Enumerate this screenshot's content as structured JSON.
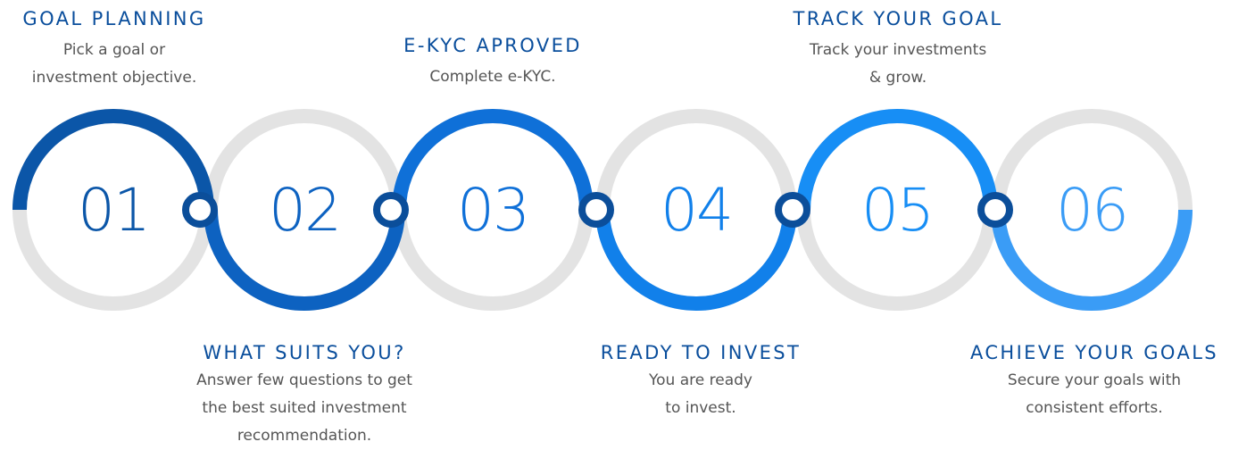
{
  "steps": [
    {
      "number": "01",
      "title": "GOAL PLANNING",
      "desc_line1": "Pick a goal or",
      "desc_line2": "investment objective.",
      "desc_line3": "",
      "color": "#0b56a8"
    },
    {
      "number": "02",
      "title": "WHAT SUITS YOU?",
      "desc_line1": "Answer few questions to get",
      "desc_line2": "the best suited investment",
      "desc_line3": "recommendation.",
      "color": "#0d62c1"
    },
    {
      "number": "03",
      "title": "E-KYC APROVED",
      "desc_line1": "Complete e-KYC.",
      "desc_line2": "",
      "desc_line3": "",
      "color": "#0f70d8"
    },
    {
      "number": "04",
      "title": "READY TO INVEST",
      "desc_line1": "You are ready",
      "desc_line2": "to invest.",
      "desc_line3": "",
      "color": "#1180ea"
    },
    {
      "number": "05",
      "title": "TRACK YOUR GOAL",
      "desc_line1": "Track your investments",
      "desc_line2": "& grow.",
      "desc_line3": "",
      "color": "#178ef5"
    },
    {
      "number": "06",
      "title": "ACHIEVE YOUR GOALS",
      "desc_line1": "Secure your goals with",
      "desc_line2": "consistent efforts.",
      "desc_line3": "",
      "color": "#3a9cf6"
    }
  ],
  "ring_track_color": "#e3e3e3",
  "connector_color": "#0b4e9a"
}
